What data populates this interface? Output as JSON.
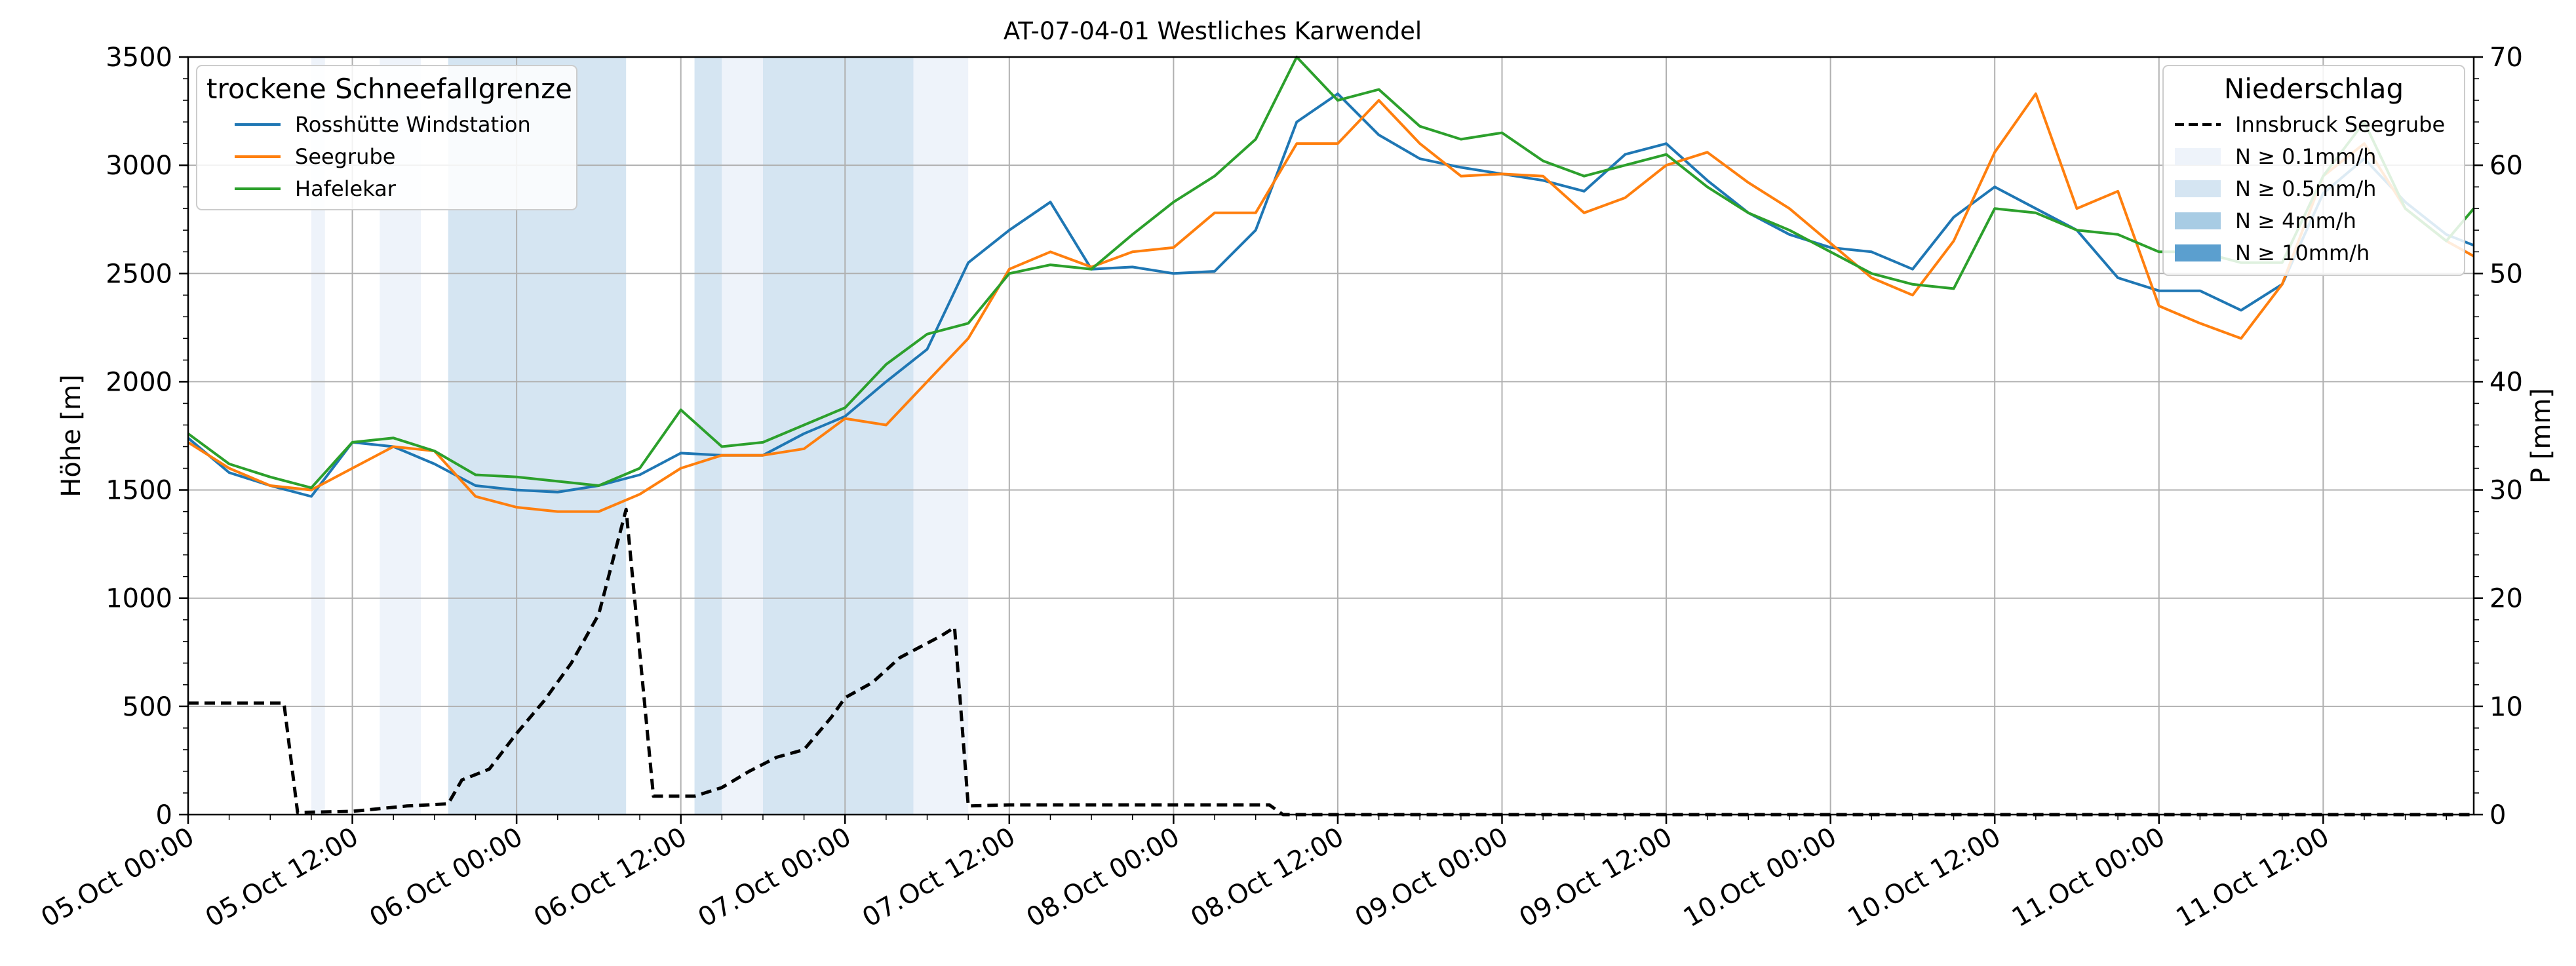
{
  "chart_data": {
    "type": "line",
    "title": "AT-07-04-01 Westliches Karwendel",
    "ylabel": "Höhe [m]",
    "y2label": "P [mm]",
    "ylim": [
      0,
      3500
    ],
    "y2lim": [
      0,
      70
    ],
    "xlim_hours": [
      0,
      167
    ],
    "x_ticks": [
      "05.Oct 00:00",
      "05.Oct 12:00",
      "06.Oct 00:00",
      "06.Oct 12:00",
      "07.Oct 00:00",
      "07.Oct 12:00",
      "08.Oct 00:00",
      "08.Oct 12:00",
      "09.Oct 00:00",
      "09.Oct 12:00",
      "10.Oct 00:00",
      "10.Oct 12:00",
      "11.Oct 00:00",
      "11.Oct 12:00"
    ],
    "y_ticks": [
      0,
      500,
      1000,
      1500,
      2000,
      2500,
      3000,
      3500
    ],
    "y2_ticks": [
      0,
      10,
      20,
      30,
      40,
      50,
      60,
      70
    ],
    "grid": true,
    "legend1": {
      "title": "trockene Schneefallgrenze",
      "placement": "top-left",
      "entries": [
        "Rosshütte Windstation",
        "Seegrube",
        "Hafelekar"
      ]
    },
    "legend2": {
      "title": "Niederschlag",
      "placement": "top-right",
      "entries": [
        "Innsbruck Seegrube",
        "N ≥ 0.1mm/h",
        "N ≥ 0.5mm/h",
        "N ≥ 4mm/h",
        "N ≥ 10mm/h"
      ]
    },
    "colors": {
      "Rosshütte Windstation": "#1f77b4",
      "Seegrube": "#ff7f0e",
      "Hafelekar": "#2ca02c",
      "Innsbruck Seegrube": "#000000",
      "N ≥ 0.1mm/h": "#eef3fa",
      "N ≥ 0.5mm/h": "#d5e5f2",
      "N ≥ 4mm/h": "#a8cce4",
      "N ≥ 10mm/h": "#5b9fcf"
    },
    "precip_intervals": [
      {
        "start": 9,
        "end": 10,
        "level": "N ≥ 0.1mm/h"
      },
      {
        "start": 14,
        "end": 17,
        "level": "N ≥ 0.1mm/h"
      },
      {
        "start": 19,
        "end": 32,
        "level": "N ≥ 0.5mm/h"
      },
      {
        "start": 37,
        "end": 39,
        "level": "N ≥ 0.5mm/h"
      },
      {
        "start": 39,
        "end": 42,
        "level": "N ≥ 0.1mm/h"
      },
      {
        "start": 42,
        "end": 53,
        "level": "N ≥ 0.5mm/h"
      },
      {
        "start": 53,
        "end": 57,
        "level": "N ≥ 0.1mm/h"
      }
    ],
    "series": [
      {
        "name": "Rosshütte Windstation",
        "axis": "left",
        "x": [
          0,
          3,
          6,
          9,
          12,
          15,
          18,
          21,
          24,
          27,
          30,
          33,
          36,
          39,
          42,
          45,
          48,
          51,
          54,
          57,
          60,
          63,
          66,
          69,
          72,
          75,
          78,
          81,
          84,
          87,
          90,
          93,
          96,
          99,
          102,
          105,
          108,
          111,
          114,
          117,
          120,
          123,
          126,
          129,
          132,
          135,
          138,
          141,
          144,
          147,
          150,
          153,
          156,
          159,
          162,
          165,
          167
        ],
        "y": [
          1740,
          1580,
          1520,
          1470,
          1720,
          1700,
          1620,
          1520,
          1500,
          1490,
          1520,
          1570,
          1670,
          1660,
          1660,
          1760,
          1840,
          2000,
          2150,
          2550,
          2700,
          2830,
          2520,
          2530,
          2500,
          2510,
          2700,
          3200,
          3330,
          3140,
          3030,
          2990,
          2960,
          2930,
          2880,
          3050,
          3100,
          2930,
          2780,
          2680,
          2620,
          2600,
          2520,
          2760,
          2900,
          2800,
          2700,
          2480,
          2420,
          2420,
          2330,
          2450,
          2870,
          3030,
          2830,
          2680,
          2630
        ]
      },
      {
        "name": "Seegrube",
        "axis": "left",
        "x": [
          0,
          3,
          6,
          9,
          12,
          15,
          18,
          21,
          24,
          27,
          30,
          33,
          36,
          39,
          42,
          45,
          48,
          51,
          54,
          57,
          60,
          63,
          66,
          69,
          72,
          75,
          78,
          81,
          84,
          87,
          90,
          93,
          96,
          99,
          102,
          105,
          108,
          111,
          114,
          117,
          120,
          123,
          126,
          129,
          132,
          135,
          138,
          141,
          144,
          147,
          150,
          153,
          156,
          159,
          162,
          165,
          167
        ],
        "y": [
          1720,
          1600,
          1520,
          1500,
          1600,
          1700,
          1680,
          1470,
          1420,
          1400,
          1400,
          1480,
          1600,
          1660,
          1660,
          1690,
          1830,
          1800,
          2000,
          2200,
          2520,
          2600,
          2530,
          2600,
          2620,
          2780,
          2780,
          3100,
          3100,
          3300,
          3100,
          2950,
          2960,
          2950,
          2780,
          2850,
          3000,
          3060,
          2920,
          2800,
          2640,
          2480,
          2400,
          2650,
          3060,
          3330,
          2800,
          2880,
          2350,
          2270,
          2200,
          2450,
          2950,
          3100,
          2800,
          2650,
          2580
        ]
      },
      {
        "name": "Hafelekar",
        "axis": "left",
        "x": [
          0,
          3,
          6,
          9,
          12,
          15,
          18,
          21,
          24,
          27,
          30,
          33,
          36,
          39,
          42,
          45,
          48,
          51,
          54,
          57,
          60,
          63,
          66,
          69,
          72,
          75,
          78,
          81,
          84,
          87,
          90,
          93,
          96,
          99,
          102,
          105,
          108,
          111,
          114,
          117,
          120,
          123,
          126,
          129,
          132,
          135,
          138,
          141,
          144,
          147,
          150,
          153,
          156,
          159,
          162,
          165,
          167
        ],
        "y": [
          1760,
          1620,
          1560,
          1510,
          1720,
          1740,
          1680,
          1570,
          1560,
          1540,
          1520,
          1600,
          1870,
          1700,
          1720,
          1800,
          1880,
          2080,
          2220,
          2270,
          2500,
          2540,
          2520,
          2680,
          2830,
          2950,
          3120,
          3500,
          3300,
          3350,
          3180,
          3120,
          3150,
          3020,
          2950,
          3000,
          3050,
          2900,
          2780,
          2700,
          2600,
          2500,
          2450,
          2430,
          2800,
          2780,
          2700,
          2680,
          2600,
          2600,
          2550,
          2550,
          2950,
          3200,
          2800,
          2650,
          2800
        ]
      },
      {
        "name": "Innsbruck Seegrube",
        "axis": "right",
        "x": [
          0,
          7,
          8,
          12,
          16,
          19,
          20,
          22,
          24,
          26,
          28,
          30,
          32,
          34,
          37,
          39,
          41,
          43,
          45,
          47,
          48,
          50,
          52,
          55,
          56,
          57,
          60,
          70,
          79,
          80,
          100,
          120,
          140,
          167
        ],
        "y": [
          10.3,
          10.3,
          0.2,
          0.3,
          0.8,
          1.0,
          3.2,
          4.2,
          7.5,
          10.5,
          14.0,
          18.5,
          28.2,
          1.7,
          1.7,
          2.5,
          4.0,
          5.3,
          6.0,
          9.0,
          10.8,
          12.2,
          14.5,
          16.5,
          17.3,
          0.8,
          0.9,
          0.9,
          0.9,
          0.0,
          0.0,
          0.0,
          0.0,
          0.0
        ]
      }
    ]
  }
}
